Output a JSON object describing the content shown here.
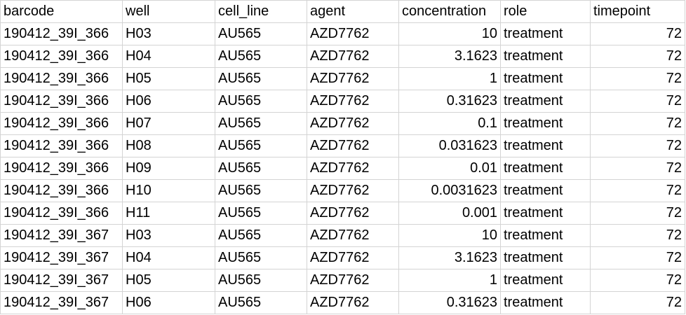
{
  "sheet": {
    "columns": [
      "barcode",
      "well",
      "cell_line",
      "agent",
      "concentration",
      "role",
      "timepoint"
    ],
    "rows": [
      [
        "190412_39I_366",
        "H03",
        "AU565",
        "AZD7762",
        "10",
        "treatment",
        "72"
      ],
      [
        "190412_39I_366",
        "H04",
        "AU565",
        "AZD7762",
        "3.1623",
        "treatment",
        "72"
      ],
      [
        "190412_39I_366",
        "H05",
        "AU565",
        "AZD7762",
        "1",
        "treatment",
        "72"
      ],
      [
        "190412_39I_366",
        "H06",
        "AU565",
        "AZD7762",
        "0.31623",
        "treatment",
        "72"
      ],
      [
        "190412_39I_366",
        "H07",
        "AU565",
        "AZD7762",
        "0.1",
        "treatment",
        "72"
      ],
      [
        "190412_39I_366",
        "H08",
        "AU565",
        "AZD7762",
        "0.031623",
        "treatment",
        "72"
      ],
      [
        "190412_39I_366",
        "H09",
        "AU565",
        "AZD7762",
        "0.01",
        "treatment",
        "72"
      ],
      [
        "190412_39I_366",
        "H10",
        "AU565",
        "AZD7762",
        "0.0031623",
        "treatment",
        "72"
      ],
      [
        "190412_39I_366",
        "H11",
        "AU565",
        "AZD7762",
        "0.001",
        "treatment",
        "72"
      ],
      [
        "190412_39I_367",
        "H03",
        "AU565",
        "AZD7762",
        "10",
        "treatment",
        "72"
      ],
      [
        "190412_39I_367",
        "H04",
        "AU565",
        "AZD7762",
        "3.1623",
        "treatment",
        "72"
      ],
      [
        "190412_39I_367",
        "H05",
        "AU565",
        "AZD7762",
        "1",
        "treatment",
        "72"
      ],
      [
        "190412_39I_367",
        "H06",
        "AU565",
        "AZD7762",
        "0.31623",
        "treatment",
        "72"
      ]
    ],
    "gridline_color": "#d4d4d4",
    "text_color": "#000000"
  }
}
